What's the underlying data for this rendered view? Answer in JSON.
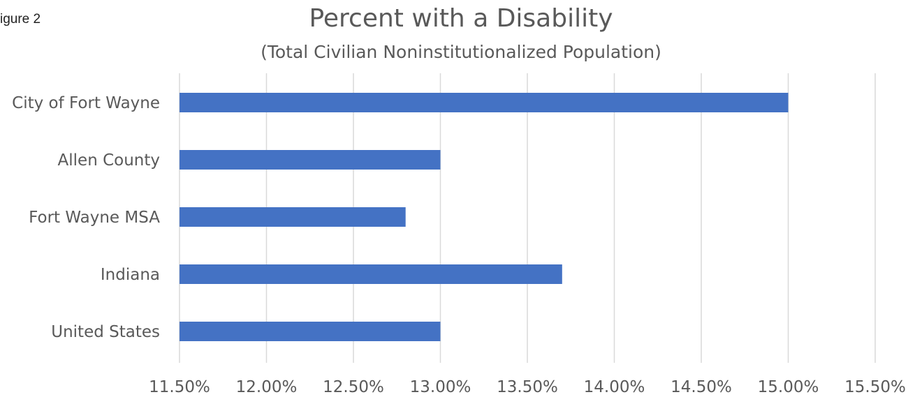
{
  "figure_label": "igure 2",
  "chart_data": {
    "type": "bar",
    "orientation": "horizontal",
    "title": "Percent with a Disability",
    "subtitle": "(Total Civilian Noninstitutionalized Population)",
    "categories": [
      "City of Fort Wayne",
      "Allen County",
      "Fort Wayne MSA",
      "Indiana",
      "United States"
    ],
    "values": [
      15.0,
      13.0,
      12.8,
      13.7,
      13.0
    ],
    "unit": "%",
    "xlim": [
      11.5,
      15.5
    ],
    "ticks": [
      11.5,
      12.0,
      12.5,
      13.0,
      13.5,
      14.0,
      14.5,
      15.0,
      15.5
    ],
    "tick_labels": [
      "11.50%",
      "12.00%",
      "12.50%",
      "13.00%",
      "13.50%",
      "14.00%",
      "14.50%",
      "15.00%",
      "15.50%"
    ],
    "grid": true,
    "legend": "none",
    "bar_color": "#4472c4"
  }
}
